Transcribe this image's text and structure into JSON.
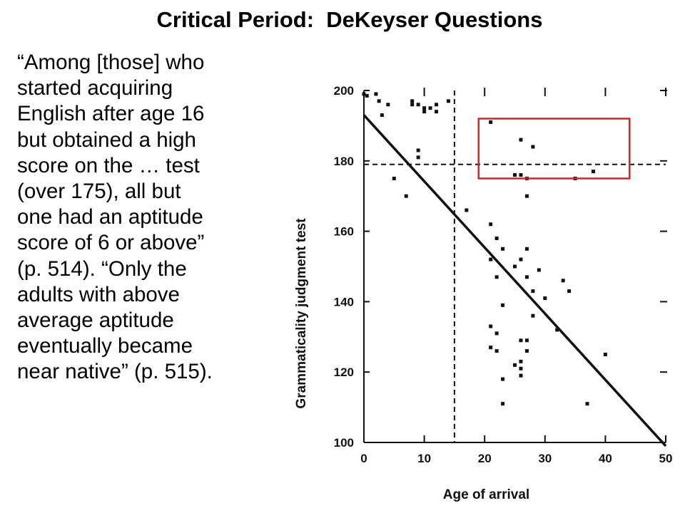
{
  "slide": {
    "title": "Critical Period:  DeKeyser Questions",
    "quote_lines": [
      "“Among [those] who",
      "started acquiring",
      "English after age 16",
      "but obtained a high",
      "score on the … test",
      "(over 175), all but",
      "one had an aptitude",
      "score of 6 or above”",
      "(p. 514).  “Only the",
      "adults with above",
      "average aptitude",
      "eventually became",
      "near native” (p. 515)."
    ]
  },
  "chart_data": {
    "type": "scatter",
    "xlabel": "Age of arrival",
    "ylabel": "Grammaticality judgment test",
    "xlim": [
      0,
      50
    ],
    "ylim": [
      100,
      200
    ],
    "x_ticks": [
      0,
      10,
      20,
      30,
      40,
      50
    ],
    "y_ticks": [
      100,
      120,
      140,
      160,
      180,
      200
    ],
    "points": [
      [
        0,
        199
      ],
      [
        0.5,
        198.5
      ],
      [
        2,
        199
      ],
      [
        2.5,
        197
      ],
      [
        3,
        193
      ],
      [
        4,
        196
      ],
      [
        8,
        196
      ],
      [
        8,
        197
      ],
      [
        9,
        196
      ],
      [
        10,
        194
      ],
      [
        10,
        195
      ],
      [
        11,
        195
      ],
      [
        12,
        194
      ],
      [
        12,
        196
      ],
      [
        14,
        197
      ],
      [
        9,
        183
      ],
      [
        9,
        181
      ],
      [
        5,
        175
      ],
      [
        7,
        170
      ],
      [
        17,
        166
      ],
      [
        21,
        191
      ],
      [
        21,
        162
      ],
      [
        22,
        158
      ],
      [
        21,
        152
      ],
      [
        23,
        155
      ],
      [
        22,
        147
      ],
      [
        23,
        139
      ],
      [
        21,
        133
      ],
      [
        22,
        131
      ],
      [
        21,
        127
      ],
      [
        22,
        126
      ],
      [
        23,
        118
      ],
      [
        23,
        111
      ],
      [
        25,
        176
      ],
      [
        26,
        176
      ],
      [
        26,
        186
      ],
      [
        27,
        175
      ],
      [
        28,
        184
      ],
      [
        27,
        170
      ],
      [
        25,
        150
      ],
      [
        26,
        152
      ],
      [
        27,
        147
      ],
      [
        27,
        155
      ],
      [
        28,
        143
      ],
      [
        28,
        136
      ],
      [
        29,
        149
      ],
      [
        30,
        141
      ],
      [
        26,
        129
      ],
      [
        27,
        129
      ],
      [
        26,
        123
      ],
      [
        26,
        121
      ],
      [
        25,
        122
      ],
      [
        27,
        126
      ],
      [
        26,
        119
      ],
      [
        32,
        132
      ],
      [
        33,
        146
      ],
      [
        34,
        143
      ],
      [
        35,
        175
      ],
      [
        38,
        177
      ],
      [
        40,
        125
      ],
      [
        37,
        111
      ]
    ],
    "regression_line": [
      [
        0,
        193
      ],
      [
        50,
        99
      ]
    ],
    "reference_lines": {
      "vertical_x": 15,
      "horizontal_y": 179
    },
    "highlight_region": {
      "x": [
        19,
        44
      ],
      "y": [
        175,
        192
      ],
      "color": "#e02020"
    },
    "grid": false
  }
}
